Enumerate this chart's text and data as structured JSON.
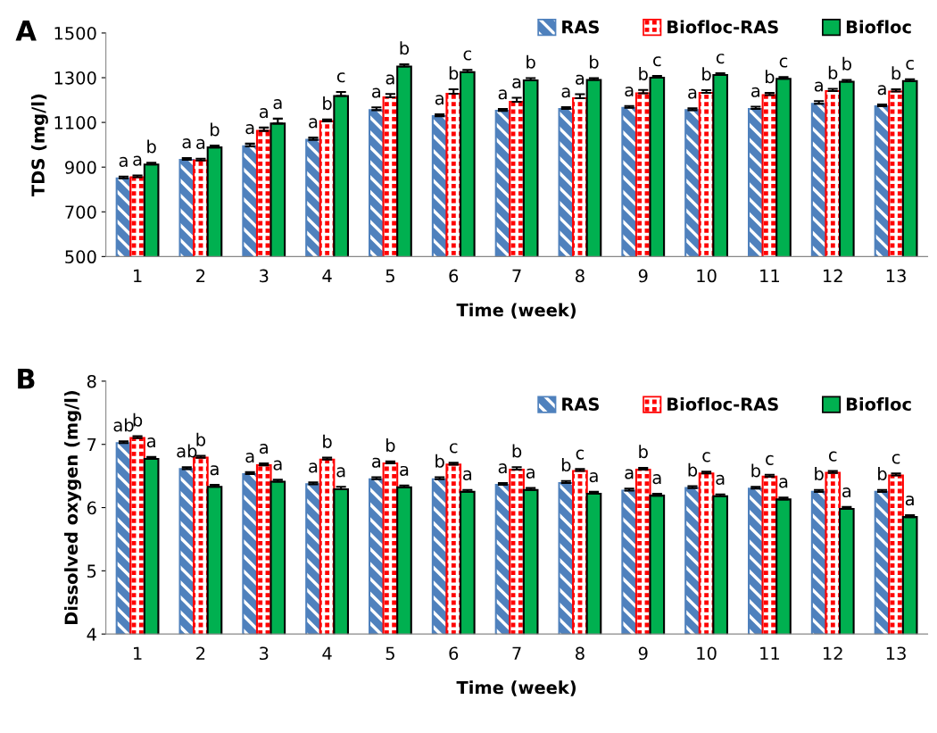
{
  "chart_data": [
    {
      "type": "bar",
      "title": "A",
      "xlabel": "Time (week)",
      "ylabel": "TDS (mg/l)",
      "categories": [
        "1",
        "2",
        "3",
        "4",
        "5",
        "6",
        "7",
        "8",
        "9",
        "10",
        "11",
        "12",
        "13"
      ],
      "series": [
        {
          "name": "RAS",
          "color": "#4f81bd",
          "values": [
            850,
            933,
            993,
            1022,
            1155,
            1128,
            1152,
            1160,
            1165,
            1155,
            1160,
            1183,
            1172
          ],
          "errors": [
            8,
            8,
            12,
            10,
            12,
            8,
            8,
            8,
            8,
            8,
            10,
            12,
            8
          ]
        },
        {
          "name": "Biofloc-RAS",
          "color": "#ff0000",
          "values": [
            855,
            930,
            1062,
            1105,
            1212,
            1228,
            1192,
            1208,
            1230,
            1232,
            1222,
            1240,
            1238
          ],
          "errors": [
            8,
            8,
            15,
            8,
            15,
            20,
            18,
            18,
            15,
            12,
            10,
            10,
            10
          ]
        },
        {
          "name": "Biofloc",
          "color": "#00b050",
          "values": [
            912,
            988,
            1095,
            1218,
            1350,
            1325,
            1288,
            1290,
            1300,
            1312,
            1295,
            1282,
            1285
          ],
          "errors": [
            8,
            8,
            22,
            18,
            10,
            10,
            10,
            8,
            8,
            8,
            8,
            8,
            8
          ]
        }
      ],
      "ylim": [
        500,
        1500
      ],
      "yticks": [
        500,
        700,
        900,
        1100,
        1300,
        1500
      ],
      "legend": "top right",
      "grid": false,
      "annotations": [
        "a",
        "a",
        "b",
        "a",
        "a",
        "b",
        "a",
        "a",
        "a",
        "a",
        "b",
        "c",
        "a",
        "a",
        "b",
        "a",
        "b",
        "c",
        "a",
        "a",
        "b",
        "a",
        "a",
        "b",
        "a",
        "b",
        "c",
        "a",
        "b",
        "c",
        "a",
        "b",
        "c",
        "a",
        "b",
        "b",
        "a",
        "b",
        "c"
      ]
    },
    {
      "type": "bar",
      "title": "B",
      "xlabel": "Time (week)",
      "ylabel": "Dissolved oxygen (mg/l)",
      "categories": [
        "1",
        "2",
        "3",
        "4",
        "5",
        "6",
        "7",
        "8",
        "9",
        "10",
        "11",
        "12",
        "13"
      ],
      "series": [
        {
          "name": "RAS",
          "color": "#4f81bd",
          "values": [
            7.02,
            6.61,
            6.53,
            6.37,
            6.45,
            6.45,
            6.36,
            6.39,
            6.27,
            6.31,
            6.3,
            6.25,
            6.25
          ],
          "errors": [
            0.03,
            0.03,
            0.03,
            0.03,
            0.03,
            0.03,
            0.03,
            0.03,
            0.03,
            0.03,
            0.03,
            0.03,
            0.03
          ]
        },
        {
          "name": "Biofloc-RAS",
          "color": "#ff0000",
          "values": [
            7.1,
            6.79,
            6.67,
            6.76,
            6.7,
            6.68,
            6.6,
            6.58,
            6.6,
            6.54,
            6.49,
            6.55,
            6.51
          ],
          "errors": [
            0.03,
            0.03,
            0.03,
            0.03,
            0.03,
            0.03,
            0.04,
            0.03,
            0.03,
            0.03,
            0.03,
            0.03,
            0.03
          ]
        },
        {
          "name": "Biofloc",
          "color": "#00b050",
          "values": [
            6.77,
            6.33,
            6.41,
            6.29,
            6.32,
            6.25,
            6.28,
            6.22,
            6.19,
            6.18,
            6.13,
            5.98,
            5.85
          ],
          "errors": [
            0.03,
            0.03,
            0.03,
            0.04,
            0.03,
            0.03,
            0.03,
            0.03,
            0.03,
            0.03,
            0.03,
            0.03,
            0.03
          ]
        }
      ],
      "ylim": [
        4,
        8
      ],
      "yticks": [
        4,
        5,
        6,
        7,
        8
      ],
      "legend": "top right",
      "grid": false,
      "annotations": [
        "ab",
        "b",
        "a",
        "ab",
        "b",
        "a",
        "a",
        "a",
        "a",
        "a",
        "b",
        "a",
        "a",
        "b",
        "a",
        "b",
        "c",
        "a",
        "a",
        "b",
        "a",
        "b",
        "c",
        "a",
        "a",
        "b",
        "a",
        "b",
        "c",
        "a",
        "b",
        "c",
        "a",
        "b",
        "c",
        "a",
        "b",
        "c",
        "a"
      ]
    }
  ]
}
